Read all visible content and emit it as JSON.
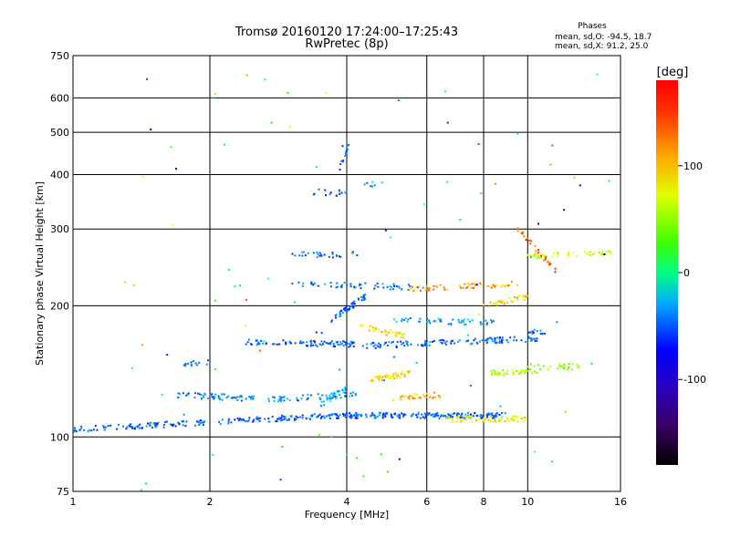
{
  "chart_data": {
    "type": "scatter",
    "title": "Tromsø 20160120 17:24:00–17:25:43",
    "subtitle": "RwPretec (8p)",
    "stats": {
      "heading": "Phases",
      "line1": "mean, sd,O: -94.5, 18.7",
      "line2": "mean, sd,X:  91.2, 25.0"
    },
    "xlabel": "Frequency [MHz]",
    "ylabel": "Stationary phase Virtual Height [km]",
    "x_scale": "log",
    "y_scale": "log",
    "xlim": [
      1,
      16
    ],
    "ylim": [
      75,
      750
    ],
    "x_ticks": [
      1,
      2,
      4,
      6,
      8,
      10,
      16
    ],
    "x_tick_labels": [
      "1",
      "2",
      "4",
      "6",
      "8",
      "10",
      "16"
    ],
    "y_ticks": [
      75,
      100,
      200,
      300,
      400,
      500,
      600,
      750
    ],
    "y_tick_labels": [
      "75",
      "100",
      "200",
      "300",
      "400",
      "500",
      "600",
      "750"
    ],
    "grid": true,
    "colorbar": {
      "label": "[deg]",
      "range": [
        -180,
        180
      ],
      "ticks": [
        100,
        0,
        -100
      ],
      "tick_labels": [
        "100",
        "0",
        "-100"
      ]
    },
    "traces": [
      {
        "x_range": [
          1.0,
          3.8
        ],
        "h_start": 104,
        "h_end": 112,
        "phase": -110,
        "count": 190
      },
      {
        "x_range": [
          3.8,
          9.0
        ],
        "h_start": 112,
        "h_end": 112,
        "phase": -110,
        "count": 180
      },
      {
        "x_range": [
          6.6,
          10.0
        ],
        "h_start": 110,
        "h_end": 110,
        "phase": 100,
        "count": 70
      },
      {
        "x_range": [
          1.7,
          2.7
        ],
        "h_start": 125,
        "h_end": 122,
        "phase": -100,
        "count": 60
      },
      {
        "x_range": [
          2.7,
          4.2
        ],
        "h_start": 122,
        "h_end": 125,
        "phase": -95,
        "count": 55
      },
      {
        "x_range": [
          3.5,
          4.0
        ],
        "h_start": 118,
        "h_end": 130,
        "phase": -80,
        "count": 30
      },
      {
        "x_range": [
          1.75,
          2.0
        ],
        "h_start": 147,
        "h_end": 148,
        "phase": -100,
        "count": 14
      },
      {
        "x_range": [
          2.4,
          4.4
        ],
        "h_start": 165,
        "h_end": 163,
        "phase": -110,
        "count": 90
      },
      {
        "x_range": [
          4.4,
          10.5
        ],
        "h_start": 162,
        "h_end": 168,
        "phase": -110,
        "count": 120
      },
      {
        "x_range": [
          4.2,
          5.4
        ],
        "h_start": 180,
        "h_end": 170,
        "phase": 110,
        "count": 40
      },
      {
        "x_range": [
          5.0,
          8.5
        ],
        "h_start": 185,
        "h_end": 183,
        "phase": -90,
        "count": 50
      },
      {
        "x_range": [
          3.7,
          4.4
        ],
        "h_start": 185,
        "h_end": 210,
        "phase": -110,
        "count": 50
      },
      {
        "x_range": [
          3.0,
          6.0
        ],
        "h_start": 225,
        "h_end": 220,
        "phase": -105,
        "count": 55
      },
      {
        "x_range": [
          5.5,
          9.5
        ],
        "h_start": 218,
        "h_end": 225,
        "phase": 130,
        "count": 55
      },
      {
        "x_range": [
          3.0,
          4.3
        ],
        "h_start": 262,
        "h_end": 262,
        "phase": -105,
        "count": 30
      },
      {
        "x_range": [
          10.0,
          15.5
        ],
        "h_start": 260,
        "h_end": 266,
        "phase": 80,
        "count": 50
      },
      {
        "x_range": [
          3.3,
          4.0
        ],
        "h_start": 363,
        "h_end": 363,
        "phase": -110,
        "count": 14
      },
      {
        "x_range": [
          4.3,
          4.8
        ],
        "h_start": 378,
        "h_end": 380,
        "phase": -90,
        "count": 8
      },
      {
        "x_range": [
          3.85,
          4.05
        ],
        "h_start": 410,
        "h_end": 470,
        "phase": -110,
        "count": 14
      },
      {
        "x_range": [
          4.5,
          5.5
        ],
        "h_start": 135,
        "h_end": 140,
        "phase": 110,
        "count": 45
      },
      {
        "x_range": [
          5.0,
          6.5
        ],
        "h_start": 123,
        "h_end": 125,
        "phase": 120,
        "count": 35
      },
      {
        "x_range": [
          8.2,
          10.5
        ],
        "h_start": 140,
        "h_end": 142,
        "phase": 80,
        "count": 40
      },
      {
        "x_range": [
          10.0,
          13.0
        ],
        "h_start": 145,
        "h_end": 145,
        "phase": 60,
        "count": 30
      },
      {
        "x_range": [
          8.0,
          10.0
        ],
        "h_start": 200,
        "h_end": 210,
        "phase": 110,
        "count": 35
      },
      {
        "x_range": [
          10.0,
          11.0
        ],
        "h_start": 175,
        "h_end": 175,
        "phase": -110,
        "count": 12
      },
      {
        "x_range": [
          9.5,
          11.5
        ],
        "h_start": 300,
        "h_end": 240,
        "phase": 150,
        "count": 30
      },
      {
        "x_range": [
          1.3,
          16.0
        ],
        "h_start": 75,
        "h_end": 700,
        "phase": 0,
        "count": 90,
        "scatter": true
      }
    ]
  }
}
